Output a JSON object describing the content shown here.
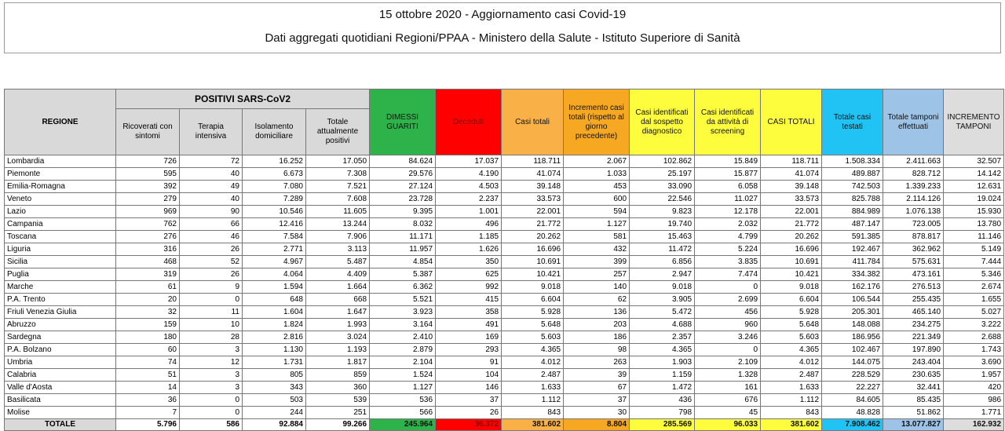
{
  "header": {
    "title": "15 ottobre 2020 - Aggiornamento casi Covid-19",
    "subtitle": "Dati aggregati quotidiani Regioni/PPAA - Ministero della Salute - Istituto Superiore di Sanità"
  },
  "table": {
    "group_header": "POSITIVI SARS-CoV2",
    "columns": [
      "REGIONE",
      "Ricoverati con sintomi",
      "Terapia intensiva",
      "Isolamento domiciliare",
      "Totale attualmente positivi",
      "DIMESSI GUARITI",
      "Deceduti",
      "Casi totali",
      "Incremento casi totali (rispetto al giorno precedente)",
      "Casi identificati dal sospetto diagnostico",
      "Casi identificati da attività di screening",
      "CASI TOTALI",
      "Totale casi testati",
      "Totale tamponi effettuati",
      "INCREMENTO TAMPONI"
    ],
    "rows": [
      [
        "Lombardia",
        "726",
        "72",
        "16.252",
        "17.050",
        "84.624",
        "17.037",
        "118.711",
        "2.067",
        "102.862",
        "15.849",
        "118.711",
        "1.508.334",
        "2.411.663",
        "32.507"
      ],
      [
        "Piemonte",
        "595",
        "40",
        "6.673",
        "7.308",
        "29.576",
        "4.190",
        "41.074",
        "1.033",
        "25.197",
        "15.877",
        "41.074",
        "489.887",
        "828.712",
        "14.142"
      ],
      [
        "Emilia-Romagna",
        "392",
        "49",
        "7.080",
        "7.521",
        "27.124",
        "4.503",
        "39.148",
        "453",
        "33.090",
        "6.058",
        "39.148",
        "742.503",
        "1.339.233",
        "12.631"
      ],
      [
        "Veneto",
        "279",
        "40",
        "7.289",
        "7.608",
        "23.728",
        "2.237",
        "33.573",
        "600",
        "22.546",
        "11.027",
        "33.573",
        "825.788",
        "2.114.126",
        "19.024"
      ],
      [
        "Lazio",
        "969",
        "90",
        "10.546",
        "11.605",
        "9.395",
        "1.001",
        "22.001",
        "594",
        "9.823",
        "12.178",
        "22.001",
        "884.989",
        "1.076.138",
        "15.930"
      ],
      [
        "Campania",
        "762",
        "66",
        "12.416",
        "13.244",
        "8.032",
        "496",
        "21.772",
        "1.127",
        "19.740",
        "2.032",
        "21.772",
        "487.147",
        "723.005",
        "13.780"
      ],
      [
        "Toscana",
        "276",
        "46",
        "7.584",
        "7.906",
        "11.171",
        "1.185",
        "20.262",
        "581",
        "15.463",
        "4.799",
        "20.262",
        "591.385",
        "878.817",
        "11.146"
      ],
      [
        "Liguria",
        "316",
        "26",
        "2.771",
        "3.113",
        "11.957",
        "1.626",
        "16.696",
        "432",
        "11.472",
        "5.224",
        "16.696",
        "192.467",
        "362.962",
        "5.149"
      ],
      [
        "Sicilia",
        "468",
        "52",
        "4.967",
        "5.487",
        "4.854",
        "350",
        "10.691",
        "399",
        "6.856",
        "3.835",
        "10.691",
        "411.784",
        "575.631",
        "7.444"
      ],
      [
        "Puglia",
        "319",
        "26",
        "4.064",
        "4.409",
        "5.387",
        "625",
        "10.421",
        "257",
        "2.947",
        "7.474",
        "10.421",
        "334.382",
        "473.161",
        "5.346"
      ],
      [
        "Marche",
        "61",
        "9",
        "1.594",
        "1.664",
        "6.362",
        "992",
        "9.018",
        "140",
        "9.018",
        "0",
        "9.018",
        "162.176",
        "276.513",
        "2.674"
      ],
      [
        "P.A. Trento",
        "20",
        "0",
        "648",
        "668",
        "5.521",
        "415",
        "6.604",
        "62",
        "3.905",
        "2.699",
        "6.604",
        "106.544",
        "255.435",
        "1.655"
      ],
      [
        "Friuli Venezia Giulia",
        "32",
        "11",
        "1.604",
        "1.647",
        "3.923",
        "358",
        "5.928",
        "136",
        "5.472",
        "456",
        "5.928",
        "205.301",
        "465.140",
        "5.027"
      ],
      [
        "Abruzzo",
        "159",
        "10",
        "1.824",
        "1.993",
        "3.164",
        "491",
        "5.648",
        "203",
        "4.688",
        "960",
        "5.648",
        "148.088",
        "234.275",
        "3.222"
      ],
      [
        "Sardegna",
        "180",
        "28",
        "2.816",
        "3.024",
        "2.410",
        "169",
        "5.603",
        "186",
        "2.357",
        "3.246",
        "5.603",
        "186.956",
        "221.349",
        "2.688"
      ],
      [
        "P.A. Bolzano",
        "60",
        "3",
        "1.130",
        "1.193",
        "2.879",
        "293",
        "4.365",
        "98",
        "4.365",
        "0",
        "4.365",
        "102.467",
        "197.890",
        "1.743"
      ],
      [
        "Umbria",
        "74",
        "12",
        "1.731",
        "1.817",
        "2.104",
        "91",
        "4.012",
        "263",
        "1.903",
        "2.109",
        "4.012",
        "144.075",
        "243.404",
        "3.690"
      ],
      [
        "Calabria",
        "51",
        "3",
        "805",
        "859",
        "1.524",
        "104",
        "2.487",
        "39",
        "1.159",
        "1.328",
        "2.487",
        "228.529",
        "230.635",
        "1.957"
      ],
      [
        "Valle d'Aosta",
        "14",
        "3",
        "343",
        "360",
        "1.127",
        "146",
        "1.633",
        "67",
        "1.472",
        "161",
        "1.633",
        "22.227",
        "32.441",
        "420"
      ],
      [
        "Basilicata",
        "36",
        "0",
        "503",
        "539",
        "536",
        "37",
        "1.112",
        "37",
        "436",
        "676",
        "1.112",
        "84.605",
        "85.435",
        "986"
      ],
      [
        "Molise",
        "7",
        "0",
        "244",
        "251",
        "566",
        "26",
        "843",
        "30",
        "798",
        "45",
        "843",
        "48.828",
        "51.862",
        "1.771"
      ]
    ],
    "total": [
      "TOTALE",
      "5.796",
      "586",
      "92.884",
      "99.266",
      "245.964",
      "36.372",
      "381.602",
      "8.804",
      "285.569",
      "96.033",
      "381.602",
      "7.908.462",
      "13.077.827",
      "162.932"
    ]
  }
}
